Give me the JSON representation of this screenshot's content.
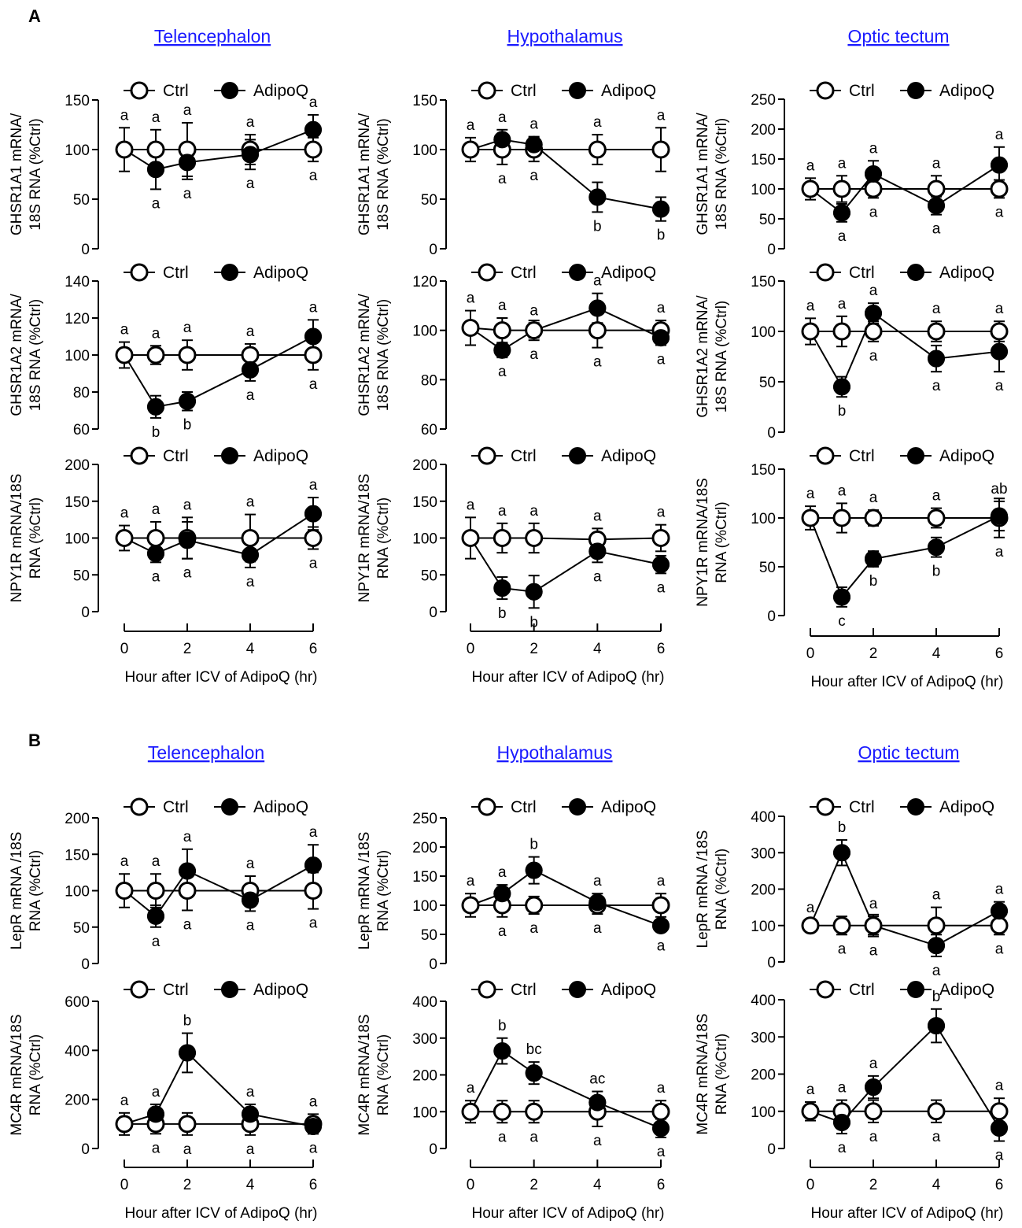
{
  "panel_labels": [
    "A",
    "B"
  ],
  "legend": {
    "ctrl": "Ctrl",
    "adipoq": "AdipoQ"
  },
  "colors": {
    "title": "#1a1aff",
    "ink": "#000000",
    "open_fill": "#ffffff"
  },
  "chart_data": [
    {
      "id": "A-tel-1",
      "type": "line",
      "title": "Telencephalon",
      "ylabel": [
        "GHSR1A1 mRNA/",
        "18S RNA (%Ctrl)"
      ],
      "ylim": [
        0,
        150
      ],
      "yticks": [
        0,
        50,
        100,
        150
      ],
      "x": [
        0,
        1,
        2,
        4,
        6
      ],
      "series": [
        {
          "name": "Ctrl",
          "values": [
            100,
            100,
            100,
            100,
            100
          ],
          "err": [
            22,
            20,
            27,
            15,
            12
          ],
          "labels": [
            "a",
            "a",
            "a",
            "a",
            "a"
          ]
        },
        {
          "name": "AdipoQ",
          "values": [
            null,
            80,
            87,
            95,
            120
          ],
          "err": [
            0,
            20,
            17,
            15,
            15
          ],
          "labels": [
            "",
            "a",
            "a",
            "a",
            "a"
          ]
        }
      ]
    },
    {
      "id": "A-hyp-1",
      "type": "line",
      "title": "Hypothalamus",
      "ylabel": [
        "GHSR1A1 mRNA/",
        "18S RNA (%Ctrl)"
      ],
      "ylim": [
        0,
        150
      ],
      "yticks": [
        0,
        50,
        100,
        150
      ],
      "x": [
        0,
        1,
        2,
        4,
        6
      ],
      "series": [
        {
          "name": "Ctrl",
          "values": [
            100,
            100,
            100,
            100,
            100
          ],
          "err": [
            12,
            15,
            12,
            15,
            22
          ],
          "labels": [
            "a",
            "a",
            "a",
            "a",
            "a"
          ]
        },
        {
          "name": "AdipoQ",
          "values": [
            null,
            110,
            105,
            52,
            40
          ],
          "err": [
            0,
            10,
            8,
            15,
            12
          ],
          "labels": [
            "",
            "a",
            "a",
            "b",
            "b"
          ]
        }
      ]
    },
    {
      "id": "A-opt-1",
      "type": "line",
      "title": "Optic tectum",
      "ylabel": [
        "GHSR1A1 mRNA/",
        "18S RNA (%Ctrl)"
      ],
      "ylim": [
        0,
        250
      ],
      "yticks": [
        0,
        50,
        100,
        150,
        200,
        250
      ],
      "x": [
        0,
        1,
        2,
        4,
        6
      ],
      "series": [
        {
          "name": "Ctrl",
          "values": [
            100,
            100,
            100,
            100,
            100
          ],
          "err": [
            18,
            22,
            15,
            22,
            15
          ],
          "labels": [
            "a",
            "a",
            "a",
            "a",
            "a"
          ]
        },
        {
          "name": "AdipoQ",
          "values": [
            null,
            60,
            125,
            72,
            140
          ],
          "err": [
            0,
            15,
            22,
            15,
            30
          ],
          "labels": [
            "",
            "a",
            "a",
            "a",
            "a"
          ]
        }
      ]
    },
    {
      "id": "A-tel-2",
      "type": "line",
      "ylabel": [
        "GHSR1A2 mRNA/",
        "18S RNA (%Ctrl)"
      ],
      "ylim": [
        60,
        140
      ],
      "yticks": [
        60,
        80,
        100,
        120,
        140
      ],
      "x": [
        0,
        1,
        2,
        4,
        6
      ],
      "series": [
        {
          "name": "Ctrl",
          "values": [
            100,
            100,
            100,
            100,
            100
          ],
          "err": [
            7,
            5,
            8,
            6,
            8
          ],
          "labels": [
            "a",
            "a",
            "a",
            "a",
            "a"
          ]
        },
        {
          "name": "AdipoQ",
          "values": [
            null,
            72,
            75,
            92,
            110
          ],
          "err": [
            0,
            6,
            5,
            6,
            9
          ],
          "labels": [
            "",
            "b",
            "b",
            "a",
            "a"
          ]
        }
      ]
    },
    {
      "id": "A-hyp-2",
      "type": "line",
      "ylabel": [
        "GHSR1A2 mRNA/",
        "18S RNA (%Ctrl)"
      ],
      "ylim": [
        60,
        120
      ],
      "yticks": [
        60,
        80,
        100,
        120
      ],
      "x": [
        0,
        1,
        2,
        4,
        6
      ],
      "series": [
        {
          "name": "Ctrl",
          "values": [
            101,
            100,
            100,
            100,
            100
          ],
          "err": [
            7,
            5,
            4,
            7,
            4
          ],
          "labels": [
            "a",
            "a",
            "a",
            "a",
            "a"
          ]
        },
        {
          "name": "AdipoQ",
          "values": [
            null,
            92,
            100,
            109,
            97
          ],
          "err": [
            0,
            3,
            3,
            6,
            3
          ],
          "labels": [
            "",
            "a",
            "a",
            "a",
            "a"
          ]
        }
      ]
    },
    {
      "id": "A-opt-2",
      "type": "line",
      "ylabel": [
        "GHSR1A2 mRNA/",
        "18S RNA (%Ctrl)"
      ],
      "ylim": [
        0,
        150
      ],
      "yticks": [
        0,
        50,
        100,
        150
      ],
      "x": [
        0,
        1,
        2,
        4,
        6
      ],
      "series": [
        {
          "name": "Ctrl",
          "values": [
            100,
            100,
            100,
            100,
            100
          ],
          "err": [
            13,
            15,
            10,
            10,
            10
          ],
          "labels": [
            "a",
            "a",
            "a",
            "a",
            "a"
          ]
        },
        {
          "name": "AdipoQ",
          "values": [
            null,
            45,
            118,
            73,
            80
          ],
          "err": [
            0,
            10,
            10,
            13,
            20
          ],
          "labels": [
            "",
            "b",
            "a",
            "a",
            "a"
          ]
        }
      ]
    },
    {
      "id": "A-tel-3",
      "type": "line",
      "ylabel": [
        "NPY1R mRNA/18S",
        "RNA (%Ctrl)"
      ],
      "ylim": [
        0,
        200
      ],
      "yticks": [
        0,
        50,
        100,
        150,
        200
      ],
      "x": [
        0,
        1,
        2,
        4,
        6
      ],
      "series": [
        {
          "name": "Ctrl",
          "values": [
            100,
            100,
            100,
            100,
            100
          ],
          "err": [
            17,
            22,
            28,
            32,
            15
          ],
          "labels": [
            "a",
            "a",
            "a",
            "a",
            "a"
          ]
        },
        {
          "name": "AdipoQ",
          "values": [
            null,
            79,
            97,
            77,
            133
          ],
          "err": [
            0,
            12,
            25,
            17,
            22
          ],
          "labels": [
            "",
            "a",
            "a",
            "a",
            "a"
          ]
        }
      ]
    },
    {
      "id": "A-hyp-3",
      "type": "line",
      "ylabel": [
        "NPY1R mRNA/18S",
        "RNA (%Ctrl)"
      ],
      "ylim": [
        0,
        200
      ],
      "yticks": [
        0,
        50,
        100,
        150,
        200
      ],
      "x": [
        0,
        1,
        2,
        4,
        6
      ],
      "series": [
        {
          "name": "Ctrl",
          "values": [
            100,
            100,
            100,
            98,
            100
          ],
          "err": [
            28,
            20,
            20,
            15,
            18
          ],
          "labels": [
            "a",
            "a",
            "a",
            "a",
            "a"
          ]
        },
        {
          "name": "AdipoQ",
          "values": [
            null,
            32,
            27,
            82,
            64
          ],
          "err": [
            0,
            15,
            22,
            15,
            12
          ],
          "labels": [
            "",
            "b",
            "b",
            "a",
            "a"
          ]
        }
      ]
    },
    {
      "id": "A-opt-3",
      "type": "line",
      "ylabel": [
        "NPY1R mRNA/18S",
        "RNA (%Ctrl)"
      ],
      "ylim": [
        0,
        150
      ],
      "yticks": [
        0,
        50,
        100,
        150
      ],
      "x": [
        0,
        1,
        2,
        4,
        6
      ],
      "series": [
        {
          "name": "Ctrl",
          "values": [
            100,
            100,
            100,
            100,
            100
          ],
          "err": [
            12,
            15,
            8,
            10,
            20
          ],
          "labels": [
            "a",
            "a",
            "a",
            "a",
            "a"
          ]
        },
        {
          "name": "AdipoQ",
          "values": [
            null,
            19,
            58,
            70,
            102
          ],
          "err": [
            0,
            10,
            8,
            10,
            15
          ],
          "labels": [
            "",
            "c",
            "b",
            "b",
            "ab"
          ]
        }
      ]
    },
    {
      "id": "B-tel-1",
      "type": "line",
      "title": "Telencephalon",
      "ylabel": [
        "LepR mRNA /18S",
        "RNA (%Ctrl)"
      ],
      "ylim": [
        0,
        200
      ],
      "yticks": [
        0,
        50,
        100,
        150,
        200
      ],
      "x": [
        0,
        1,
        2,
        4,
        6
      ],
      "series": [
        {
          "name": "Ctrl",
          "values": [
            100,
            100,
            100,
            100,
            100
          ],
          "err": [
            23,
            23,
            27,
            20,
            25
          ],
          "labels": [
            "a",
            "a",
            "a",
            "a",
            "a"
          ]
        },
        {
          "name": "AdipoQ",
          "values": [
            null,
            65,
            127,
            87,
            135
          ],
          "err": [
            0,
            15,
            30,
            15,
            28
          ],
          "labels": [
            "",
            "a",
            "a",
            "a",
            "a"
          ]
        }
      ]
    },
    {
      "id": "B-hyp-1",
      "type": "line",
      "title": "Hypothalamus",
      "ylabel": [
        "LepR mRNA /18S",
        "RNA (%Ctrl)"
      ],
      "ylim": [
        0,
        250
      ],
      "yticks": [
        0,
        50,
        100,
        150,
        200,
        250
      ],
      "x": [
        0,
        1,
        2,
        4,
        6
      ],
      "series": [
        {
          "name": "Ctrl",
          "values": [
            100,
            100,
            100,
            100,
            100
          ],
          "err": [
            20,
            20,
            15,
            15,
            20
          ],
          "labels": [
            "a",
            "a",
            "a",
            "a",
            "a"
          ]
        },
        {
          "name": "AdipoQ",
          "values": [
            null,
            120,
            160,
            105,
            65
          ],
          "err": [
            0,
            15,
            23,
            15,
            10
          ],
          "labels": [
            "",
            "a",
            "b",
            "a",
            "a"
          ]
        }
      ]
    },
    {
      "id": "B-opt-1",
      "type": "line",
      "title": "Optic tectum",
      "ylabel": [
        "LepR mRNA /18S",
        "RNA (%Ctrl)"
      ],
      "ylim": [
        0,
        400
      ],
      "yticks": [
        0,
        100,
        200,
        300,
        400
      ],
      "x": [
        0,
        1,
        2,
        4,
        6
      ],
      "series": [
        {
          "name": "Ctrl",
          "values": [
            100,
            100,
            100,
            100,
            100
          ],
          "err": [
            15,
            25,
            30,
            50,
            25
          ],
          "labels": [
            "a",
            "a",
            "a",
            "a",
            "a"
          ]
        },
        {
          "name": "AdipoQ",
          "values": [
            null,
            300,
            100,
            45,
            140
          ],
          "err": [
            0,
            35,
            25,
            30,
            25
          ],
          "labels": [
            "",
            "b",
            "a",
            "a",
            "a"
          ]
        }
      ]
    },
    {
      "id": "B-tel-2",
      "type": "line",
      "ylabel": [
        "MC4R mRNA/18S",
        "RNA (%Ctrl)"
      ],
      "ylim": [
        0,
        600
      ],
      "yticks": [
        0,
        200,
        400,
        600
      ],
      "x": [
        0,
        1,
        2,
        4,
        6
      ],
      "series": [
        {
          "name": "Ctrl",
          "values": [
            100,
            100,
            100,
            100,
            100
          ],
          "err": [
            45,
            40,
            45,
            45,
            40
          ],
          "labels": [
            "a",
            "a",
            "a",
            "a",
            "a"
          ]
        },
        {
          "name": "AdipoQ",
          "values": [
            null,
            140,
            390,
            140,
            90
          ],
          "err": [
            0,
            40,
            80,
            40,
            30
          ],
          "labels": [
            "",
            "a",
            "b",
            "a",
            "a"
          ]
        }
      ]
    },
    {
      "id": "B-hyp-2",
      "type": "line",
      "ylabel": [
        "MC4R mRNA/18S",
        "RNA (%Ctrl)"
      ],
      "ylim": [
        0,
        400
      ],
      "yticks": [
        0,
        100,
        200,
        300,
        400
      ],
      "x": [
        0,
        1,
        2,
        4,
        6
      ],
      "series": [
        {
          "name": "Ctrl",
          "values": [
            100,
            100,
            100,
            100,
            100
          ],
          "err": [
            30,
            30,
            30,
            40,
            30
          ],
          "labels": [
            "a",
            "a",
            "a",
            "a",
            "a"
          ]
        },
        {
          "name": "AdipoQ",
          "values": [
            null,
            265,
            205,
            125,
            55
          ],
          "err": [
            0,
            35,
            30,
            30,
            25
          ],
          "labels": [
            "",
            "b",
            "bc",
            "ac",
            "a"
          ]
        }
      ]
    },
    {
      "id": "B-opt-2",
      "type": "line",
      "ylabel": [
        "MC4R mRNA/18S",
        "RNA (%Ctrl)"
      ],
      "ylim": [
        0,
        400
      ],
      "yticks": [
        0,
        100,
        200,
        300,
        400
      ],
      "x": [
        0,
        1,
        2,
        4,
        6
      ],
      "series": [
        {
          "name": "Ctrl",
          "values": [
            100,
            100,
            100,
            100,
            100
          ],
          "err": [
            25,
            30,
            30,
            30,
            35
          ],
          "labels": [
            "a",
            "a",
            "a",
            "a",
            "a"
          ]
        },
        {
          "name": "AdipoQ",
          "values": [
            null,
            70,
            165,
            330,
            55
          ],
          "err": [
            0,
            30,
            30,
            45,
            35
          ],
          "labels": [
            "",
            "a",
            "a",
            "b",
            "a"
          ]
        }
      ]
    }
  ],
  "xaxis": {
    "ticks": [
      0,
      2,
      4,
      6
    ],
    "label": "Hour after ICV of AdipoQ (hr)"
  }
}
